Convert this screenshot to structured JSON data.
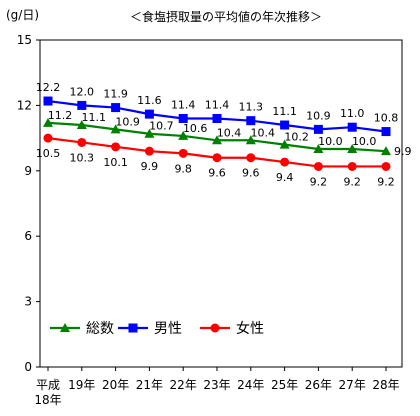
{
  "chart_data": {
    "type": "line",
    "title": "＜食塩摂取量の平均値の年次推移＞",
    "ylabel": "(g/日)",
    "xlabel": "",
    "ylim": [
      0,
      15
    ],
    "yticks": [
      0,
      3,
      6,
      9,
      12,
      15
    ],
    "grid": false,
    "legend_position": "bottom-left",
    "categories": [
      [
        "平成",
        "18年"
      ],
      [
        "19年"
      ],
      [
        "20年"
      ],
      [
        "21年"
      ],
      [
        "22年"
      ],
      [
        "23年"
      ],
      [
        "24年"
      ],
      [
        "25年"
      ],
      [
        "26年"
      ],
      [
        "27年"
      ],
      [
        "28年"
      ]
    ],
    "series": [
      {
        "name": "総数",
        "color": "#008000",
        "marker": "triangle",
        "values": [
          11.2,
          11.1,
          10.9,
          10.7,
          10.6,
          10.4,
          10.4,
          10.2,
          10.0,
          10.0,
          9.9
        ],
        "labels": [
          "11.2",
          "11.1",
          "10.9",
          "10.7",
          "10.6",
          "10.4",
          "10.4",
          "10.2",
          "10.0",
          "10.0",
          "9.9"
        ]
      },
      {
        "name": "男性",
        "color": "#0000ff",
        "marker": "square",
        "values": [
          12.2,
          12.0,
          11.9,
          11.6,
          11.4,
          11.4,
          11.3,
          11.1,
          10.9,
          11.0,
          10.8
        ],
        "labels": [
          "12.2",
          "12.0",
          "11.9",
          "11.6",
          "11.4",
          "11.4",
          "11.3",
          "11.1",
          "10.9",
          "11.0",
          "10.8"
        ]
      },
      {
        "name": "女性",
        "color": "#ff0000",
        "marker": "circle",
        "values": [
          10.5,
          10.3,
          10.1,
          9.9,
          9.8,
          9.6,
          9.6,
          9.4,
          9.2,
          9.2,
          9.2
        ],
        "labels": [
          "10.5",
          "10.3",
          "10.1",
          "9.9",
          "9.8",
          "9.6",
          "9.6",
          "9.4",
          "9.2",
          "9.2",
          "9.2"
        ]
      }
    ]
  }
}
